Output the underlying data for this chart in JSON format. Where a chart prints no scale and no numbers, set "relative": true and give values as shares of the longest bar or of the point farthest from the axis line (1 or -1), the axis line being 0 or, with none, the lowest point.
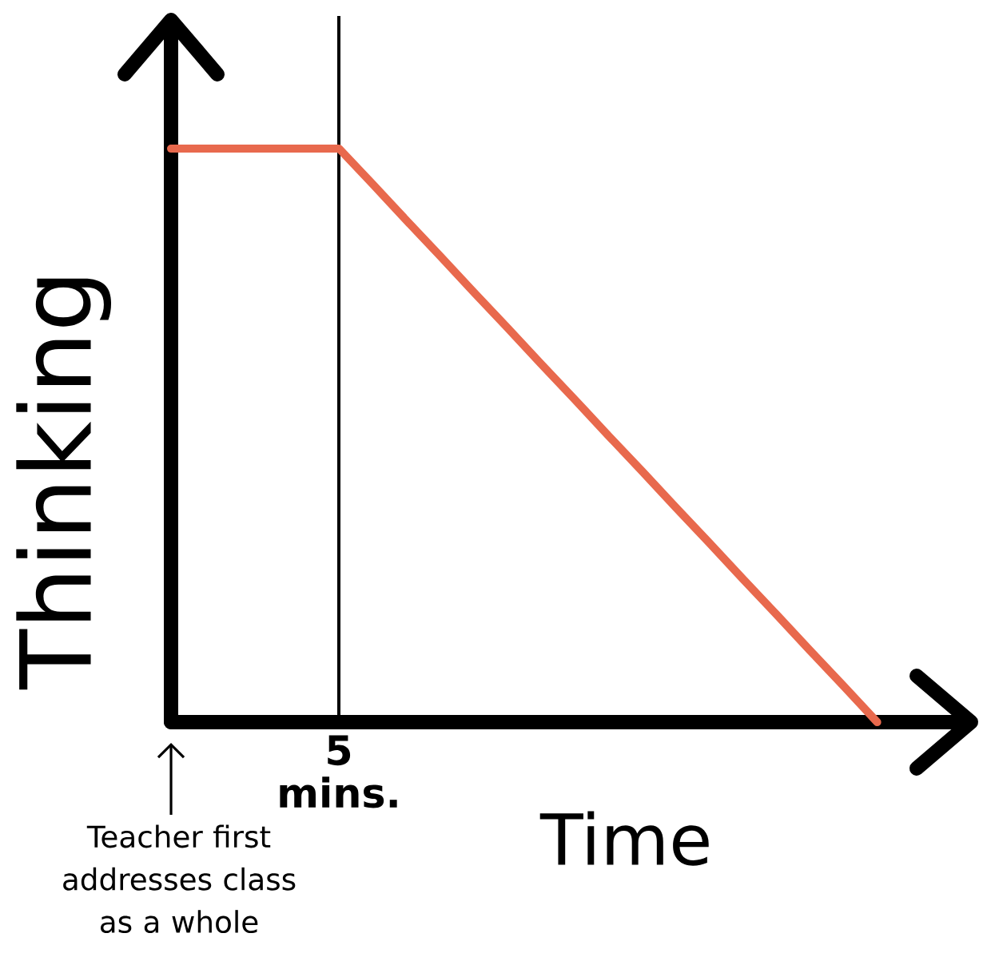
{
  "chart_data": {
    "type": "line",
    "xlabel": "Time",
    "ylabel": "Thinking",
    "categories": [
      null,
      null,
      null,
      null,
      null,
      null,
      null,
      null,
      null,
      null,
      null,
      null,
      null,
      null,
      null,
      null,
      null,
      null,
      null,
      null,
      null,
      null
    ],
    "values": [
      1,
      1,
      1,
      1,
      1,
      1,
      0.938,
      0.875,
      0.813,
      0.75,
      0.688,
      0.625,
      0.563,
      0.5,
      0.438,
      0.375,
      0.313,
      0.25,
      0.188,
      0.125,
      0.063,
      0
    ],
    "color": "#e8694d",
    "relative": true,
    "annotations": [
      "5 mins.",
      "Teacher first addresses class as a whole"
    ]
  }
}
